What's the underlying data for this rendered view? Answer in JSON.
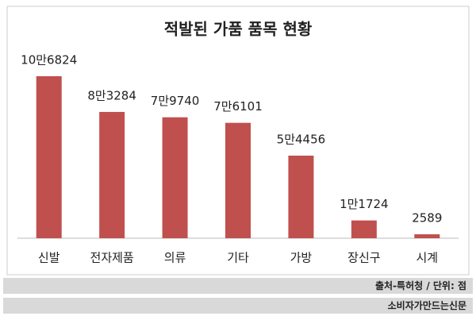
{
  "chart_data": {
    "type": "bar",
    "title": "적발된 가품 품목 현황",
    "categories": [
      "신발",
      "전자제품",
      "의류",
      "기타",
      "가방",
      "장신구",
      "시계"
    ],
    "values": [
      106824,
      83284,
      79740,
      76101,
      54456,
      11724,
      2589
    ],
    "value_labels": [
      "10만6824",
      "8만3284",
      "7만9740",
      "7만6101",
      "5만4456",
      "1만1724",
      "2589"
    ],
    "color": "#c0504d"
  },
  "footer": {
    "source": "출처-특허청 / 단위: 점",
    "publisher": "소비자가만드는신문"
  }
}
